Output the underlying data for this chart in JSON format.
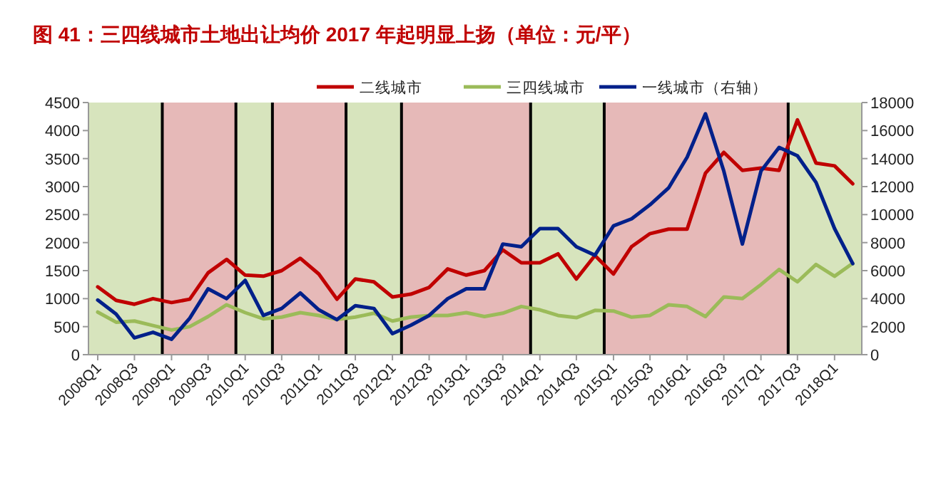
{
  "chart_data": {
    "type": "line",
    "title": "图 41：三四线城市土地出让均价 2017 年起明显上扬（单位：元/平）",
    "x": [
      "2008-01",
      "2008-04",
      "2008-07",
      "2008-10",
      "2009-01",
      "2009-04",
      "2009-07",
      "2009-10",
      "2010-01",
      "2010-04",
      "2010-07",
      "2010-10",
      "2011-01",
      "2011-04",
      "2011-07",
      "2011-10",
      "2012-01",
      "2012-04",
      "2012-07",
      "2012-10",
      "2013-01",
      "2013-04",
      "2013-07",
      "2013-10",
      "2014-01",
      "2014-04",
      "2014-07",
      "2014-10",
      "2015-01",
      "2015-04",
      "2015-07",
      "2015-10",
      "2016-01",
      "2016-04",
      "2016-07",
      "2016-10",
      "2017-01",
      "2017-04",
      "2017-07",
      "2017-10",
      "2018-01",
      "2018-04"
    ],
    "series": [
      {
        "name": "二线城市",
        "color": "#c00000",
        "values": [
          1210,
          970,
          900,
          1000,
          930,
          990,
          1460,
          1700,
          1420,
          1400,
          1500,
          1720,
          1440,
          990,
          1350,
          1300,
          1030,
          1080,
          1200,
          1530,
          1420,
          1500,
          1870,
          1640,
          1640,
          1800,
          1350,
          1770,
          1440,
          1930,
          2160,
          2240,
          2240,
          3240,
          3610,
          3290,
          3330,
          3290,
          4190,
          3420,
          3370,
          3050
        ]
      },
      {
        "name": "三四线城市",
        "color": "#9bbb59",
        "values": [
          760,
          580,
          600,
          520,
          440,
          500,
          680,
          890,
          750,
          640,
          670,
          750,
          700,
          630,
          670,
          740,
          600,
          670,
          700,
          700,
          750,
          680,
          740,
          860,
          800,
          700,
          660,
          790,
          780,
          670,
          700,
          890,
          860,
          680,
          1030,
          1000,
          1250,
          1520,
          1300,
          1610,
          1400,
          1630
        ]
      },
      {
        "name": "一线城市（右轴）",
        "color": "#00208a",
        "axis": "y2",
        "values": [
          3900,
          2900,
          1200,
          1600,
          1100,
          2600,
          4700,
          4000,
          5300,
          2800,
          3300,
          4400,
          3200,
          2500,
          3500,
          3300,
          1500,
          2100,
          2800,
          4000,
          4700,
          4700,
          7900,
          7700,
          9000,
          9000,
          7700,
          7100,
          9200,
          9700,
          10700,
          11900,
          14100,
          17200,
          13100,
          7900,
          13100,
          14800,
          14200,
          12300,
          9000,
          6500
        ]
      }
    ],
    "xlim": [
      "2007-11-16",
      "2018-05-16"
    ],
    "xticks": [
      {
        "value": "2008-01",
        "label": "2008Q1"
      },
      {
        "value": "2008-07",
        "label": "2008Q3"
      },
      {
        "value": "2009-01",
        "label": "2009Q1"
      },
      {
        "value": "2009-07",
        "label": "2009Q3"
      },
      {
        "value": "2010-01",
        "label": "2010Q1"
      },
      {
        "value": "2010-07",
        "label": "2010Q3"
      },
      {
        "value": "2011-01",
        "label": "2011Q1"
      },
      {
        "value": "2011-07",
        "label": "2011Q3"
      },
      {
        "value": "2012-01",
        "label": "2012Q1"
      },
      {
        "value": "2012-07",
        "label": "2012Q3"
      },
      {
        "value": "2013-01",
        "label": "2013Q1"
      },
      {
        "value": "2013-07",
        "label": "2013Q3"
      },
      {
        "value": "2014-01",
        "label": "2014Q1"
      },
      {
        "value": "2014-07",
        "label": "2014Q3"
      },
      {
        "value": "2015-01",
        "label": "2015Q1"
      },
      {
        "value": "2015-07",
        "label": "2015Q3"
      },
      {
        "value": "2016-01",
        "label": "2016Q1"
      },
      {
        "value": "2016-07",
        "label": "2016Q3"
      },
      {
        "value": "2017-01",
        "label": "2017Q1"
      },
      {
        "value": "2017-07",
        "label": "2017Q3"
      },
      {
        "value": "2018-01",
        "label": "2018Q1"
      }
    ],
    "ylim": [
      0,
      4500
    ],
    "yticks": [
      0,
      500,
      1000,
      1500,
      2000,
      2500,
      3000,
      3500,
      4000,
      4500
    ],
    "y2lim": [
      0,
      18000
    ],
    "y2ticks": [
      0,
      2000,
      4000,
      6000,
      8000,
      10000,
      12000,
      14000,
      16000,
      18000
    ],
    "bands": [
      {
        "axis": "x",
        "from": "2007-11-16",
        "to": "2008-11-16",
        "color": "#d7e4bd"
      },
      {
        "axis": "x",
        "from": "2008-11-16",
        "to": "2009-11-16",
        "color": "#e6b9b8"
      },
      {
        "axis": "x",
        "from": "2009-11-16",
        "to": "2010-05-16",
        "color": "#d7e4bd"
      },
      {
        "axis": "x",
        "from": "2010-05-16",
        "to": "2011-05-16",
        "color": "#e6b9b8"
      },
      {
        "axis": "x",
        "from": "2011-05-16",
        "to": "2012-02-15",
        "color": "#d7e4bd"
      },
      {
        "axis": "x",
        "from": "2012-02-15",
        "to": "2013-11-16",
        "color": "#e6b9b8"
      },
      {
        "axis": "x",
        "from": "2013-11-16",
        "to": "2014-11-16",
        "color": "#d7e4bd"
      },
      {
        "axis": "x",
        "from": "2014-11-16",
        "to": "2017-05-16",
        "color": "#e6b9b8"
      },
      {
        "axis": "x",
        "from": "2017-05-16",
        "to": "2018-05-16",
        "color": "#d7e4bd"
      }
    ],
    "ref_lines": [
      {
        "axis": "x",
        "value": "2008-11-16",
        "color": "#000000"
      },
      {
        "axis": "x",
        "value": "2009-11-16",
        "color": "#000000"
      },
      {
        "axis": "x",
        "value": "2010-05-16",
        "color": "#000000"
      },
      {
        "axis": "x",
        "value": "2011-05-16",
        "color": "#000000"
      },
      {
        "axis": "x",
        "value": "2012-02-15",
        "color": "#000000"
      },
      {
        "axis": "x",
        "value": "2013-11-16",
        "color": "#000000"
      },
      {
        "axis": "x",
        "value": "2014-11-16",
        "color": "#000000"
      },
      {
        "axis": "x",
        "value": "2017-05-16",
        "color": "#000000"
      }
    ],
    "grid": false,
    "legend": "top",
    "marker": "none",
    "line_style": "solid"
  }
}
